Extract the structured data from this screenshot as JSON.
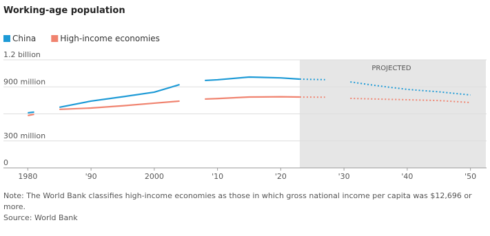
{
  "chart_data": {
    "type": "line",
    "title": "Working-age population",
    "x": [
      1980,
      1981,
      1983,
      1985,
      1990,
      1995,
      2000,
      2004,
      2006,
      2008,
      2010,
      2015,
      2020,
      2023,
      2027,
      2029,
      2031,
      2035,
      2040,
      2045,
      2050
    ],
    "series": [
      {
        "name": "China",
        "color": "#1d9ad6",
        "values": [
          612,
          620,
          null,
          673,
          742,
          790,
          841,
          925,
          null,
          971,
          979,
          1009,
          1000,
          986,
          980,
          null,
          955,
          915,
          872,
          845,
          810
        ]
      },
      {
        "name": "High-income economies",
        "color": "#f0836f",
        "values": [
          581,
          596,
          null,
          650,
          665,
          690,
          719,
          742,
          null,
          765,
          770,
          787,
          790,
          787,
          785,
          null,
          772,
          765,
          757,
          748,
          726
        ]
      }
    ],
    "xlim": [
      1978,
      2052
    ],
    "xticks": [
      1980,
      {
        "value": 1990,
        "label": "'90"
      },
      2000,
      {
        "value": 2010,
        "label": "'10"
      },
      {
        "value": 2020,
        "label": "'20"
      },
      {
        "value": 2030,
        "label": "'30"
      },
      {
        "value": 2040,
        "label": "'40"
      },
      {
        "value": 2050,
        "label": "'50"
      }
    ],
    "ylim": [
      0,
      1200
    ],
    "yticks": [
      0,
      {
        "value": 300,
        "label": "300 million"
      },
      {
        "value": 600,
        "label": null
      },
      {
        "value": 900,
        "label": "900 million"
      },
      {
        "value": 1200,
        "label": "1.2 billion"
      }
    ],
    "grid": true,
    "projected_from": 2023,
    "projected_label": "PROJECTED",
    "note": "Note: The World Bank classifies high-income economies as those in which gross national income per capita was $12,696 or more.",
    "source": "Source: World Bank"
  }
}
